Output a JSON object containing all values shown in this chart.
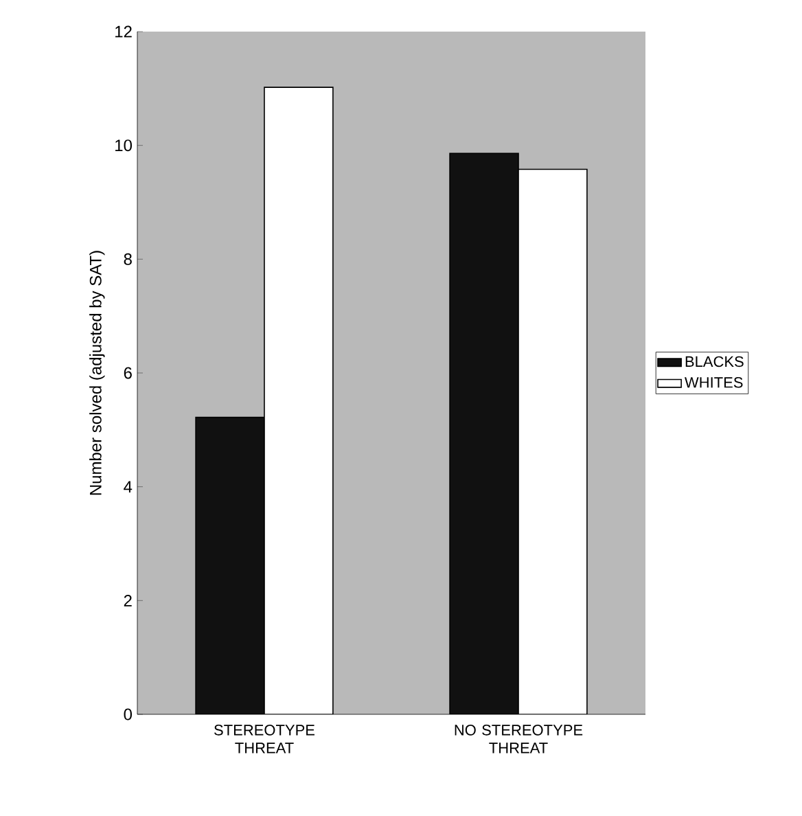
{
  "chart_data": {
    "type": "bar",
    "ylabel": "Number solved (adjusted by SAT)",
    "categories": [
      "STEREOTYPE THREAT",
      "NO STEREOTYPE THREAT"
    ],
    "series": [
      {
        "name": "BLACKS",
        "color": "#111111",
        "values": [
          5.22,
          9.86
        ]
      },
      {
        "name": "WHITES",
        "color": "#ffffff",
        "values": [
          11.02,
          9.58
        ]
      }
    ],
    "ylim": [
      0,
      12
    ],
    "yticks": [
      0,
      2,
      4,
      6,
      8,
      10,
      12
    ],
    "legend": "right"
  }
}
